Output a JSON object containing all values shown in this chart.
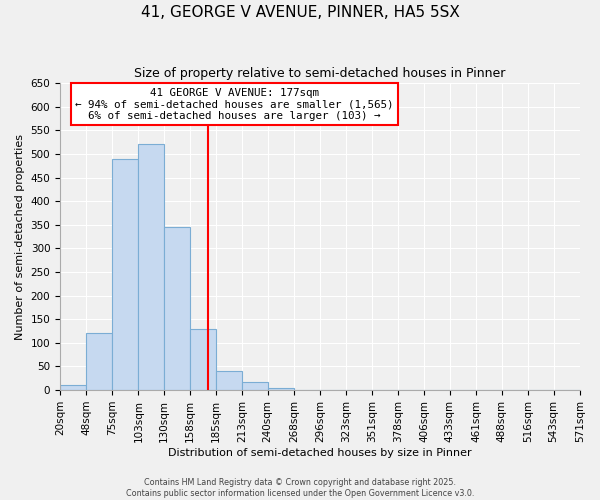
{
  "title": "41, GEORGE V AVENUE, PINNER, HA5 5SX",
  "subtitle": "Size of property relative to semi-detached houses in Pinner",
  "xlabel": "Distribution of semi-detached houses by size in Pinner",
  "ylabel": "Number of semi-detached properties",
  "bin_labels": [
    "20sqm",
    "48sqm",
    "75sqm",
    "103sqm",
    "130sqm",
    "158sqm",
    "185sqm",
    "213sqm",
    "240sqm",
    "268sqm",
    "296sqm",
    "323sqm",
    "351sqm",
    "378sqm",
    "406sqm",
    "433sqm",
    "461sqm",
    "488sqm",
    "516sqm",
    "543sqm",
    "571sqm"
  ],
  "bar_values": [
    10,
    120,
    490,
    520,
    345,
    130,
    40,
    18,
    4,
    1,
    0,
    0,
    0,
    0,
    0,
    0,
    0,
    0,
    0,
    0
  ],
  "bin_edges": [
    20,
    48,
    75,
    103,
    130,
    158,
    185,
    213,
    240,
    268,
    296,
    323,
    351,
    378,
    406,
    433,
    461,
    488,
    516,
    543,
    571
  ],
  "bar_color": "#c6d9f0",
  "bar_edge_color": "#7badd4",
  "property_size": 177,
  "vline_color": "red",
  "annotation_title": "41 GEORGE V AVENUE: 177sqm",
  "annotation_line1": "← 94% of semi-detached houses are smaller (1,565)",
  "annotation_line2": "6% of semi-detached houses are larger (103) →",
  "annotation_box_color": "white",
  "annotation_box_edge_color": "red",
  "ylim": [
    0,
    650
  ],
  "yticks": [
    0,
    50,
    100,
    150,
    200,
    250,
    300,
    350,
    400,
    450,
    500,
    550,
    600,
    650
  ],
  "footer1": "Contains HM Land Registry data © Crown copyright and database right 2025.",
  "footer2": "Contains public sector information licensed under the Open Government Licence v3.0.",
  "background_color": "#f0f0f0",
  "grid_color": "white",
  "title_fontsize": 11,
  "subtitle_fontsize": 9,
  "annotation_fontsize": 7.8,
  "axis_label_fontsize": 8,
  "tick_fontsize": 7.5,
  "footer_fontsize": 5.8
}
